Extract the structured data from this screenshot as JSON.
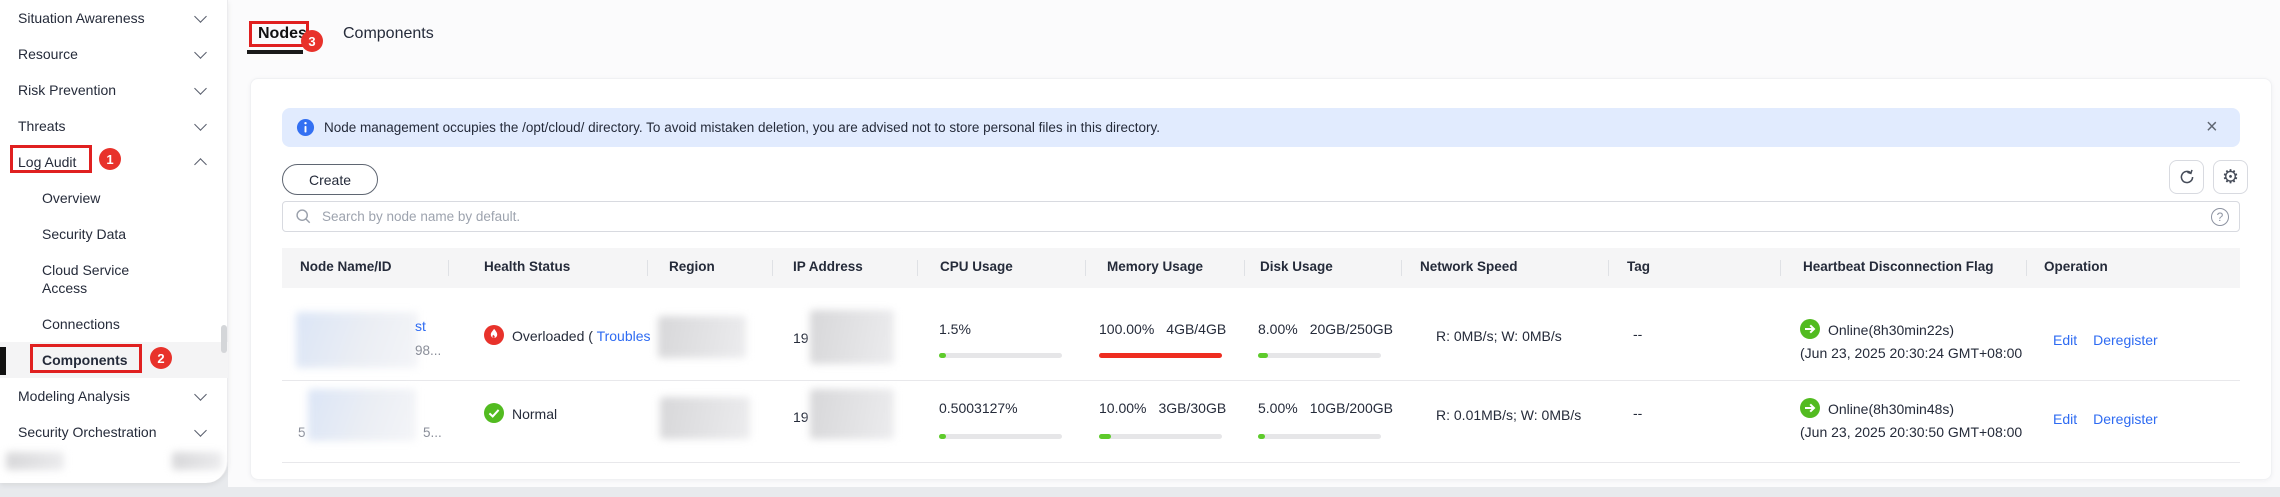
{
  "sidebar": {
    "items": [
      {
        "label": "Situation Awareness",
        "chevron": "down"
      },
      {
        "label": "Resource",
        "chevron": "down"
      },
      {
        "label": "Risk Prevention",
        "chevron": "down"
      },
      {
        "label": "Threats",
        "chevron": "down"
      },
      {
        "label": "Log Audit",
        "chevron": "up",
        "badge": "1"
      },
      {
        "label": "Overview"
      },
      {
        "label": "Security Data"
      },
      {
        "label": "Cloud Service Access"
      },
      {
        "label": "Connections"
      },
      {
        "label": "Components",
        "badge": "2",
        "selected": true
      },
      {
        "label": "Modeling Analysis",
        "chevron": "down"
      },
      {
        "label": "Security Orchestration",
        "chevron": "down"
      }
    ]
  },
  "tabs": {
    "active": "Nodes",
    "active_badge": "3",
    "inactive": "Components"
  },
  "banner": {
    "text": "Node management occupies the /opt/cloud/ directory. To avoid mistaken deletion, you are advised not to store personal files in this directory.",
    "close_icon": "×",
    "info_icon": "i"
  },
  "toolbar": {
    "create_label": "Create",
    "search_placeholder": "Search by node name by default.",
    "help_icon": "?",
    "settings_icon": "⚙"
  },
  "table": {
    "columns": [
      "Node Name/ID",
      "Health Status",
      "Region",
      "IP Address",
      "CPU Usage",
      "Memory Usage",
      "Disk Usage",
      "Network Speed",
      "Tag",
      "Heartbeat Disconnection Flag",
      "Operation"
    ],
    "rows": [
      {
        "name_suffix": "st",
        "id_suffix": "98...",
        "health": {
          "status": "Overloaded (",
          "link": "Troubles"
        },
        "ip_prefix": "19",
        "cpu": {
          "text": "1.5%",
          "pct": 1.5,
          "color": "#5ecb2b"
        },
        "memory": {
          "pct_text": "100.00%",
          "detail": "4GB/4GB",
          "pct": 100,
          "color": "#ee2d20"
        },
        "disk": {
          "pct_text": "8.00%",
          "detail": "20GB/250GB",
          "pct": 8,
          "color": "#5ecb2b"
        },
        "network": "R: 0MB/s; W: 0MB/s",
        "tag": "--",
        "heartbeat": {
          "line1": "Online(8h30min22s)",
          "line2": "(Jun 23, 2025 20:30:24 GMT+08:00"
        },
        "operations": [
          "Edit",
          "Deregister"
        ]
      },
      {
        "id_prefix": "5",
        "id_suffix": "5...",
        "health": {
          "status": "Normal",
          "link": ""
        },
        "ip_prefix": "19",
        "cpu": {
          "text": "0.5003127%",
          "pct": 0.5,
          "color": "#5ecb2b"
        },
        "memory": {
          "pct_text": "10.00%",
          "detail": "3GB/30GB",
          "pct": 10,
          "color": "#5ecb2b"
        },
        "disk": {
          "pct_text": "5.00%",
          "detail": "10GB/200GB",
          "pct": 5,
          "color": "#5ecb2b"
        },
        "network": "R: 0.01MB/s; W: 0MB/s",
        "tag": "--",
        "heartbeat": {
          "line1": "Online(8h30min48s)",
          "line2": "(Jun 23, 2025 20:30:50 GMT+08:00"
        },
        "operations": [
          "Edit",
          "Deregister"
        ]
      }
    ]
  },
  "colors": {
    "link": "#2e6bf2",
    "annotation_red": "#e02020",
    "badge_red": "#e8322b",
    "ok_green": "#52bb20",
    "alert_red": "#e8322b",
    "banner_bg": "#e1ebfe"
  }
}
